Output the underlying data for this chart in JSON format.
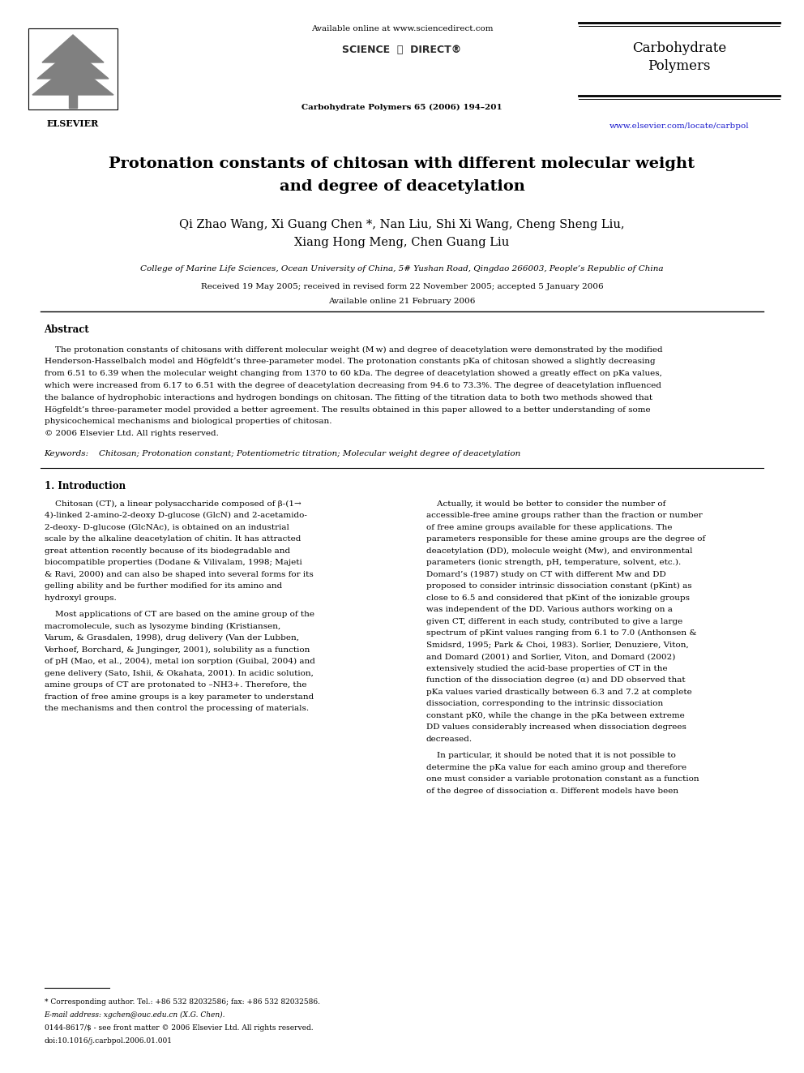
{
  "background_color": "#ffffff",
  "page_width": 9.92,
  "page_height": 13.23,
  "header": {
    "available_online": "Available online at www.sciencedirect.com",
    "journal_name_line1": "Carbohydrate",
    "journal_name_line2": "Polymers",
    "journal_ref": "Carbohydrate Polymers 65 (2006) 194–201",
    "website": "www.elsevier.com/locate/carbpol"
  },
  "title_line1": "Protonation constants of chitosan with different molecular weight",
  "title_line2": "and degree of deacetylation",
  "authors_line1": "Qi Zhao Wang, Xi Guang Chen *, Nan Liu, Shi Xi Wang, Cheng Sheng Liu,",
  "authors_line2": "Xiang Hong Meng, Chen Guang Liu",
  "affiliation": "College of Marine Life Sciences, Ocean University of China, 5# Yushan Road, Qingdao 266003, People’s Republic of China",
  "received": "Received 19 May 2005; received in revised form 22 November 2005; accepted 5 January 2006",
  "available": "Available online 21 February 2006",
  "abstract_heading": "Abstract",
  "keywords_text": "Chitosan; Protonation constant; Potentiometric titration; Molecular weight degree of deacetylation",
  "section1_heading": "1. Introduction",
  "footnote_star": "* Corresponding author. Tel.: +86 532 82032586; fax: +86 532 82032586.",
  "footnote_email": "E-mail address: xgchen@ouc.edu.cn (X.G. Chen).",
  "footnote_issn": "0144-8617/$ - see front matter © 2006 Elsevier Ltd. All rights reserved.",
  "footnote_doi": "doi:10.1016/j.carbpol.2006.01.001",
  "link_color": "#1a1acd",
  "abstract_lines": [
    "    The protonation constants of chitosans with different molecular weight (M w) and degree of deacetylation were demonstrated by the modified",
    "Henderson-Hasselbalch model and Högfeldt’s three-parameter model. The protonation constants pKa of chitosan showed a slightly decreasing",
    "from 6.51 to 6.39 when the molecular weight changing from 1370 to 60 kDa. The degree of deacetylation showed a greatly effect on pKa values,",
    "which were increased from 6.17 to 6.51 with the degree of deacetylation decreasing from 94.6 to 73.3%. The degree of deacetylation influenced",
    "the balance of hydrophobic interactions and hydrogen bondings on chitosan. The fitting of the titration data to both two methods showed that",
    "Högfeldt’s three-parameter model provided a better agreement. The results obtained in this paper allowed to a better understanding of some",
    "physicochemical mechanisms and biological properties of chitosan.",
    "© 2006 Elsevier Ltd. All rights reserved."
  ],
  "col1_lines": [
    "    Chitosan (CT), a linear polysaccharide composed of β-(1→",
    "4)-linked 2-amino-2-deoxy D-glucose (GlcN) and 2-acetamido-",
    "2-deoxy- D-glucose (GlcNAc), is obtained on an industrial",
    "scale by the alkaline deacetylation of chitin. It has attracted",
    "great attention recently because of its biodegradable and",
    "biocompatible properties (Dodane & Vilivalam, 1998; Majeti",
    "& Ravi, 2000) and can also be shaped into several forms for its",
    "gelling ability and be further modified for its amino and",
    "hydroxyl groups.",
    "",
    "    Most applications of CT are based on the amine group of the",
    "macromolecule, such as lysozyme binding (Kristiansen,",
    "Varum, & Grasdalen, 1998), drug delivery (Van der Lubben,",
    "Verhoef, Borchard, & Junginger, 2001), solubility as a function",
    "of pH (Mao, et al., 2004), metal ion sorption (Guibal, 2004) and",
    "gene delivery (Sato, Ishii, & Okahata, 2001). In acidic solution,",
    "amine groups of CT are protonated to –NH3+. Therefore, the",
    "fraction of free amine groups is a key parameter to understand",
    "the mechanisms and then control the processing of materials."
  ],
  "col2_lines": [
    "    Actually, it would be better to consider the number of",
    "accessible-free amine groups rather than the fraction or number",
    "of free amine groups available for these applications. The",
    "parameters responsible for these amine groups are the degree of",
    "deacetylation (DD), molecule weight (Mw), and environmental",
    "parameters (ionic strength, pH, temperature, solvent, etc.).",
    "Domard’s (1987) study on CT with different Mw and DD",
    "proposed to consider intrinsic dissociation constant (pKint) as",
    "close to 6.5 and considered that pKint of the ionizable groups",
    "was independent of the DD. Various authors working on a",
    "given CT, different in each study, contributed to give a large",
    "spectrum of pKint values ranging from 6.1 to 7.0 (Anthonsen &",
    "Smidsrd, 1995; Park & Choi, 1983). Sorlier, Denuziere, Viton,",
    "and Domard (2001) and Sorlier, Viton, and Domard (2002)",
    "extensively studied the acid-base properties of CT in the",
    "function of the dissociation degree (α) and DD observed that",
    "pKa values varied drastically between 6.3 and 7.2 at complete",
    "dissociation, corresponding to the intrinsic dissociation",
    "constant pK0, while the change in the pKa between extreme",
    "DD values considerably increased when dissociation degrees",
    "decreased.",
    "",
    "    In particular, it should be noted that it is not possible to",
    "determine the pKa value for each amino group and therefore",
    "one must consider a variable protonation constant as a function",
    "of the degree of dissociation α. Different models have been"
  ]
}
